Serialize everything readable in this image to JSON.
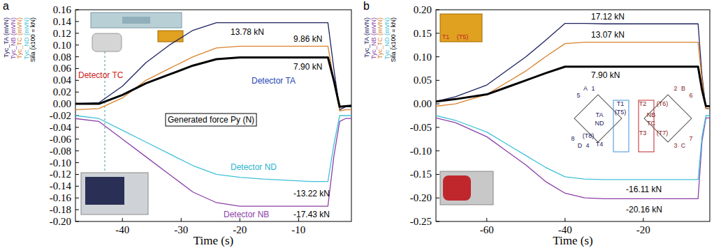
{
  "chart_data": [
    {
      "type": "line",
      "title": "a",
      "x_label": "Time (s)",
      "x": [
        -48,
        -44,
        -40,
        -36,
        -32,
        -28,
        -24,
        -20,
        -16,
        -12,
        -8,
        -5,
        -4,
        -3,
        -2,
        -1
      ],
      "series": [
        {
          "name": "Tyc_TA (mVN)",
          "color": "#1c2260",
          "values": [
            0,
            0.002,
            0.03,
            0.07,
            0.1,
            0.125,
            0.138,
            0.138,
            0.138,
            0.138,
            0.138,
            0.138,
            0.06,
            -0.01,
            -0.005,
            -0.005
          ]
        },
        {
          "name": "Tyc_NB (mVN)",
          "color": "#8b3fa8",
          "values": [
            -0.025,
            -0.03,
            -0.06,
            -0.09,
            -0.12,
            -0.15,
            -0.168,
            -0.174,
            -0.174,
            -0.174,
            -0.174,
            -0.174,
            -0.09,
            -0.03,
            -0.025,
            -0.025
          ]
        },
        {
          "name": "Tyc_TC (mVN)",
          "color": "#d9822b",
          "values": [
            -0.01,
            -0.008,
            0.01,
            0.04,
            0.06,
            0.08,
            0.095,
            0.098,
            0.098,
            0.098,
            0.098,
            0.098,
            0.04,
            -0.012,
            -0.01,
            -0.01
          ]
        },
        {
          "name": "Tyc_ND (mVN)",
          "color": "#3fc1d9",
          "values": [
            -0.02,
            -0.025,
            -0.045,
            -0.065,
            -0.085,
            -0.105,
            -0.12,
            -0.125,
            -0.128,
            -0.13,
            -0.132,
            -0.132,
            -0.07,
            -0.02,
            -0.02,
            -0.02
          ]
        },
        {
          "name": "Sila (x100 = kN)",
          "color": "#000000",
          "values": [
            0,
            0,
            0.015,
            0.035,
            0.05,
            0.065,
            0.076,
            0.079,
            0.079,
            0.079,
            0.079,
            0.079,
            0.04,
            -0.005,
            -0.004,
            -0.003
          ]
        }
      ],
      "xlim": [
        -48,
        -1
      ],
      "xticks": [
        -40,
        -30,
        -20,
        -10
      ],
      "ylim": [
        -0.2,
        0.16
      ],
      "yticks": [
        0.16,
        0.14,
        0.12,
        {
          "value": 0.1,
          "label": "0.10"
        },
        0.08,
        0.06,
        0.04,
        0.02,
        {
          "value": 0,
          "label": "0.00"
        },
        -0.02,
        -0.04,
        -0.06,
        -0.08,
        {
          "value": -0.1,
          "label": "-0.10"
        },
        -0.12,
        -0.14,
        -0.16,
        -0.18,
        {
          "value": -0.2,
          "label": "-0.20"
        }
      ],
      "annotations": [
        "13.78 kN",
        "9.86 kN",
        "7.90 kN",
        "Detector TA",
        "Detector TC",
        "Generated force Py (N)",
        "Detector NB",
        "Detector ND",
        "-13.22 kN",
        "-17.43 kN"
      ]
    },
    {
      "type": "line",
      "title": "b",
      "x_label": "Time (s)",
      "x": [
        -73,
        -68,
        -60,
        -55,
        -50,
        -45,
        -40,
        -35,
        -30,
        -20,
        -10,
        -6,
        -5,
        -4,
        -3
      ],
      "series": [
        {
          "name": "Tyc_TA (mVN)",
          "color": "#1c2260",
          "values": [
            0.005,
            0.015,
            0.04,
            0.07,
            0.1,
            0.135,
            0.171,
            0.171,
            0.17,
            0.17,
            0.17,
            0.17,
            0.06,
            -0.01,
            -0.01
          ]
        },
        {
          "name": "Tyc_NB (mVN)",
          "color": "#8b3fa8",
          "values": [
            -0.03,
            -0.04,
            -0.07,
            -0.1,
            -0.13,
            -0.165,
            -0.19,
            -0.2,
            -0.2016,
            -0.2016,
            -0.2016,
            -0.2016,
            -0.08,
            -0.03,
            -0.03
          ]
        },
        {
          "name": "Tyc_TC (mVN)",
          "color": "#d9822b",
          "values": [
            -0.005,
            0,
            0.02,
            0.045,
            0.07,
            0.1,
            0.128,
            0.131,
            0.131,
            0.131,
            0.131,
            0.131,
            0.05,
            -0.01,
            -0.01
          ]
        },
        {
          "name": "Tyc_ND (mVN)",
          "color": "#3fc1d9",
          "values": [
            -0.025,
            -0.035,
            -0.06,
            -0.085,
            -0.11,
            -0.135,
            -0.155,
            -0.16,
            -0.161,
            -0.161,
            -0.161,
            -0.161,
            -0.07,
            -0.025,
            -0.025
          ]
        },
        {
          "name": "Sila (x100 = kN)",
          "color": "#000000",
          "values": [
            0.005,
            0.01,
            0.02,
            0.035,
            0.05,
            0.065,
            0.079,
            0.079,
            0.079,
            0.079,
            0.079,
            0.079,
            0.03,
            -0.005,
            -0.005
          ]
        }
      ],
      "xlim": [
        -73,
        -3
      ],
      "xticks": [
        -60,
        -40,
        -20
      ],
      "ylim": [
        -0.25,
        0.2
      ],
      "yticks": [
        {
          "value": 0.2,
          "label": "0.20"
        },
        0.15,
        {
          "value": 0.1,
          "label": "0.10"
        },
        0.05,
        {
          "value": 0,
          "label": "0.00"
        },
        -0.05,
        {
          "value": -0.1,
          "label": "-0.10"
        },
        -0.15,
        {
          "value": -0.2,
          "label": "-0.20"
        },
        -0.25
      ],
      "annotations": [
        "17.12 kN",
        "13.07 kN",
        "7.90 kN",
        "-16.11 kN",
        "-20.16 kN"
      ],
      "gauge_labels": [
        "A",
        "1",
        "5",
        "T1",
        "(T5)",
        "TA",
        "ND",
        "(T8)",
        "T4",
        "8",
        "D",
        "4",
        "B",
        "2",
        "6",
        "T2",
        "(T6)",
        "(T7)",
        "T3",
        "NB",
        "TC",
        "3",
        "C",
        "7",
        "T1",
        "(T5)"
      ]
    }
  ]
}
